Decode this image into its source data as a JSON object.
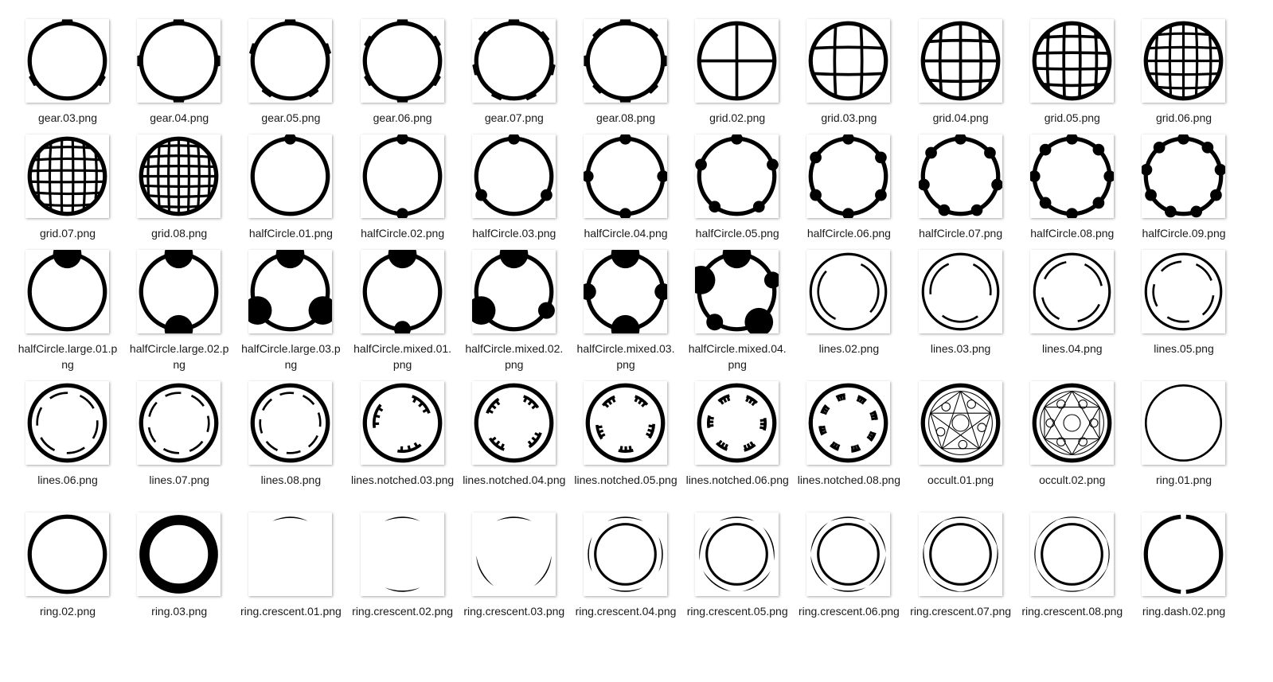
{
  "files": [
    {
      "name": "gear.03.png",
      "icon": "gear-icon",
      "kind": "gear",
      "n": 3
    },
    {
      "name": "gear.04.png",
      "icon": "gear-icon",
      "kind": "gear",
      "n": 4
    },
    {
      "name": "gear.05.png",
      "icon": "gear-icon",
      "kind": "gear",
      "n": 5
    },
    {
      "name": "gear.06.png",
      "icon": "gear-icon",
      "kind": "gear",
      "n": 6
    },
    {
      "name": "gear.07.png",
      "icon": "gear-icon",
      "kind": "gear",
      "n": 7
    },
    {
      "name": "gear.08.png",
      "icon": "gear-icon",
      "kind": "gear",
      "n": 8
    },
    {
      "name": "grid.02.png",
      "icon": "grid-circle-icon",
      "kind": "grid",
      "n": 2
    },
    {
      "name": "grid.03.png",
      "icon": "grid-circle-icon",
      "kind": "grid",
      "n": 3
    },
    {
      "name": "grid.04.png",
      "icon": "grid-circle-icon",
      "kind": "grid",
      "n": 4
    },
    {
      "name": "grid.05.png",
      "icon": "grid-circle-icon",
      "kind": "grid",
      "n": 5
    },
    {
      "name": "grid.06.png",
      "icon": "grid-circle-icon",
      "kind": "grid",
      "n": 6
    },
    {
      "name": "grid.07.png",
      "icon": "grid-circle-icon",
      "kind": "grid",
      "n": 7
    },
    {
      "name": "grid.08.png",
      "icon": "grid-circle-icon",
      "kind": "grid",
      "n": 8
    },
    {
      "name": "halfCircle.01.png",
      "icon": "half-circle-ring-icon",
      "kind": "half",
      "n": 1
    },
    {
      "name": "halfCircle.02.png",
      "icon": "half-circle-ring-icon",
      "kind": "half",
      "n": 2
    },
    {
      "name": "halfCircle.03.png",
      "icon": "half-circle-ring-icon",
      "kind": "half",
      "n": 3
    },
    {
      "name": "halfCircle.04.png",
      "icon": "half-circle-ring-icon",
      "kind": "half",
      "n": 4
    },
    {
      "name": "halfCircle.05.png",
      "icon": "half-circle-ring-icon",
      "kind": "half",
      "n": 5
    },
    {
      "name": "halfCircle.06.png",
      "icon": "half-circle-ring-icon",
      "kind": "half",
      "n": 6
    },
    {
      "name": "halfCircle.07.png",
      "icon": "half-circle-ring-icon",
      "kind": "half",
      "n": 7
    },
    {
      "name": "halfCircle.08.png",
      "icon": "half-circle-ring-icon",
      "kind": "half",
      "n": 8
    },
    {
      "name": "halfCircle.09.png",
      "icon": "half-circle-ring-icon",
      "kind": "half",
      "n": 9
    },
    {
      "name": "halfCircle.large.01.png",
      "icon": "large-half-circle-ring-icon",
      "kind": "halflarge",
      "n": 1
    },
    {
      "name": "halfCircle.large.02.png",
      "icon": "large-half-circle-ring-icon",
      "kind": "halflarge",
      "n": 2
    },
    {
      "name": "halfCircle.large.03.png",
      "icon": "large-half-circle-ring-icon",
      "kind": "halflarge",
      "n": 3
    },
    {
      "name": "halfCircle.mixed.01.png",
      "icon": "mixed-half-circle-ring-icon",
      "kind": "mixed",
      "n": 1
    },
    {
      "name": "halfCircle.mixed.02.png",
      "icon": "mixed-half-circle-ring-icon",
      "kind": "mixed",
      "n": 2
    },
    {
      "name": "halfCircle.mixed.03.png",
      "icon": "mixed-half-circle-ring-icon",
      "kind": "mixed",
      "n": 3
    },
    {
      "name": "halfCircle.mixed.04.png",
      "icon": "mixed-half-circle-ring-icon",
      "kind": "mixed",
      "n": 4
    },
    {
      "name": "lines.02.png",
      "icon": "dashed-ring-icon",
      "kind": "lines",
      "n": 2
    },
    {
      "name": "lines.03.png",
      "icon": "dashed-ring-icon",
      "kind": "lines",
      "n": 3
    },
    {
      "name": "lines.04.png",
      "icon": "dashed-ring-icon",
      "kind": "lines",
      "n": 4
    },
    {
      "name": "lines.05.png",
      "icon": "dashed-ring-icon",
      "kind": "lines",
      "n": 5
    },
    {
      "name": "lines.06.png",
      "icon": "dashed-ring-icon",
      "kind": "lines",
      "n": 6
    },
    {
      "name": "lines.07.png",
      "icon": "dashed-ring-icon",
      "kind": "lines",
      "n": 7
    },
    {
      "name": "lines.08.png",
      "icon": "dashed-ring-icon",
      "kind": "lines",
      "n": 8
    },
    {
      "name": "lines.notched.03.png",
      "icon": "notched-ring-icon",
      "kind": "notched",
      "n": 3
    },
    {
      "name": "lines.notched.04.png",
      "icon": "notched-ring-icon",
      "kind": "notched",
      "n": 4
    },
    {
      "name": "lines.notched.05.png",
      "icon": "notched-ring-icon",
      "kind": "notched",
      "n": 5
    },
    {
      "name": "lines.notched.06.png",
      "icon": "notched-ring-icon",
      "kind": "notched",
      "n": 6
    },
    {
      "name": "lines.notched.08.png",
      "icon": "notched-ring-icon",
      "kind": "notched",
      "n": 8
    },
    {
      "name": "occult.01.png",
      "icon": "occult-circle-icon",
      "kind": "occult",
      "n": 1
    },
    {
      "name": "occult.02.png",
      "icon": "occult-circle-icon",
      "kind": "occult",
      "n": 2
    },
    {
      "name": "ring.01.png",
      "icon": "thin-ring-icon",
      "kind": "ring",
      "n": 1
    },
    {
      "name": "ring.02.png",
      "icon": "ring-icon",
      "kind": "ring",
      "n": 2
    },
    {
      "name": "ring.03.png",
      "icon": "thick-ring-icon",
      "kind": "ring",
      "n": 3
    },
    {
      "name": "ring.crescent.01.png",
      "icon": "crescent-ring-icon",
      "kind": "crescent",
      "n": 1
    },
    {
      "name": "ring.crescent.02.png",
      "icon": "crescent-ring-icon",
      "kind": "crescent",
      "n": 2
    },
    {
      "name": "ring.crescent.03.png",
      "icon": "crescent-ring-icon",
      "kind": "crescent",
      "n": 3
    },
    {
      "name": "ring.crescent.04.png",
      "icon": "crescent-ring-icon",
      "kind": "crescent",
      "n": 4
    },
    {
      "name": "ring.crescent.05.png",
      "icon": "crescent-ring-icon",
      "kind": "crescent",
      "n": 5
    },
    {
      "name": "ring.crescent.06.png",
      "icon": "crescent-ring-icon",
      "kind": "crescent",
      "n": 6
    },
    {
      "name": "ring.crescent.07.png",
      "icon": "crescent-ring-icon",
      "kind": "crescent",
      "n": 7
    },
    {
      "name": "ring.crescent.08.png",
      "icon": "crescent-ring-icon",
      "kind": "crescent",
      "n": 8
    },
    {
      "name": "ring.dash.02.png",
      "icon": "dashed-ring-icon",
      "kind": "dash",
      "n": 2
    }
  ]
}
